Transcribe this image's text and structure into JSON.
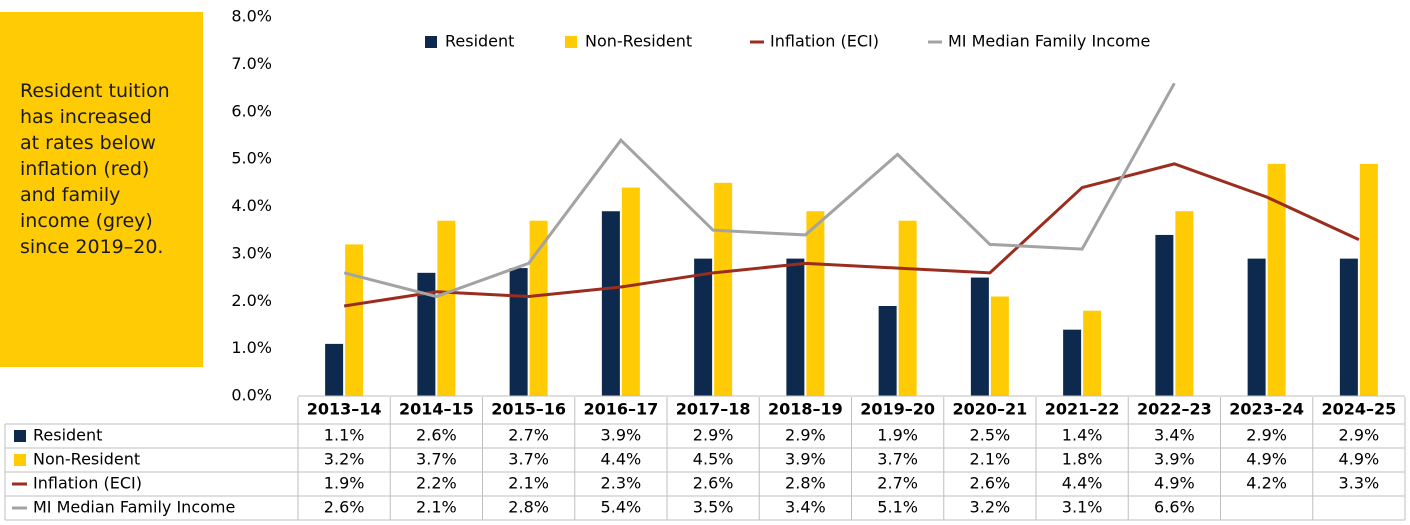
{
  "chart_data": {
    "type": "bar",
    "annotation": "Resident tuition has increased at rates below inflation (red) and family income (grey) since 2019–20.",
    "categories": [
      "2013–14",
      "2014–15",
      "2015–16",
      "2016–17",
      "2017–18",
      "2018–19",
      "2019–20",
      "2020–21",
      "2021–22",
      "2022–23",
      "2023–24",
      "2024–25"
    ],
    "series": [
      {
        "name": "Resident",
        "type": "bar",
        "color": "#0d2a4e",
        "values": [
          1.1,
          2.6,
          2.7,
          3.9,
          2.9,
          2.9,
          1.9,
          2.5,
          1.4,
          3.4,
          2.9,
          2.9
        ],
        "value_labels": [
          "1.1%",
          "2.6%",
          "2.7%",
          "3.9%",
          "2.9%",
          "2.9%",
          "1.9%",
          "2.5%",
          "1.4%",
          "3.4%",
          "2.9%",
          "2.9%"
        ]
      },
      {
        "name": "Non-Resident",
        "type": "bar",
        "color": "#ffcb05",
        "values": [
          3.2,
          3.7,
          3.7,
          4.4,
          4.5,
          3.9,
          3.7,
          2.1,
          1.8,
          3.9,
          4.9,
          4.9
        ],
        "value_labels": [
          "3.2%",
          "3.7%",
          "3.7%",
          "4.4%",
          "4.5%",
          "3.9%",
          "3.7%",
          "2.1%",
          "1.8%",
          "3.9%",
          "4.9%",
          "4.9%"
        ]
      },
      {
        "name": "Inflation (ECI)",
        "type": "line",
        "color": "#9b2d1f",
        "values": [
          1.9,
          2.2,
          2.1,
          2.3,
          2.6,
          2.8,
          2.7,
          2.6,
          4.4,
          4.9,
          4.2,
          3.3
        ],
        "value_labels": [
          "1.9%",
          "2.2%",
          "2.1%",
          "2.3%",
          "2.6%",
          "2.8%",
          "2.7%",
          "2.6%",
          "4.4%",
          "4.9%",
          "4.2%",
          "3.3%"
        ]
      },
      {
        "name": "MI Median Family Income",
        "type": "line",
        "color": "#a3a3a3",
        "values": [
          2.6,
          2.1,
          2.8,
          5.4,
          3.5,
          3.4,
          5.1,
          3.2,
          3.1,
          6.6,
          null,
          null
        ],
        "value_labels": [
          "2.6%",
          "2.1%",
          "2.8%",
          "5.4%",
          "3.5%",
          "3.4%",
          "5.1%",
          "3.2%",
          "3.1%",
          "6.6%",
          null,
          null
        ]
      }
    ],
    "ylim": [
      0,
      8
    ],
    "yticks": [
      {
        "value": 0,
        "label": "0.0%"
      },
      {
        "value": 1,
        "label": "1.0%"
      },
      {
        "value": 2,
        "label": "2.0%"
      },
      {
        "value": 3,
        "label": "3.0%"
      },
      {
        "value": 4,
        "label": "4.0%"
      },
      {
        "value": 5,
        "label": "5.0%"
      },
      {
        "value": 6,
        "label": "6.0%"
      },
      {
        "value": 7,
        "label": "7.0%"
      },
      {
        "value": 8,
        "label": "8.0%"
      }
    ],
    "grid": false,
    "legend": "top"
  }
}
